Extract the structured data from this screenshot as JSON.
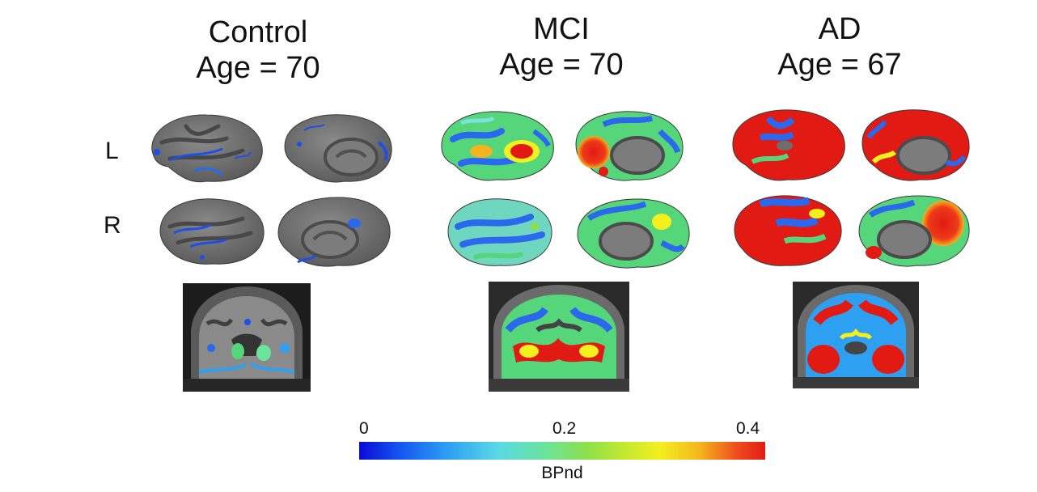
{
  "columns": [
    {
      "group": "Control",
      "age": "Age = 70"
    },
    {
      "group": "MCI",
      "age": "Age = 70"
    },
    {
      "group": "AD",
      "age": "Age = 67"
    }
  ],
  "row_labels": {
    "left": "L",
    "right": "R"
  },
  "colorbar": {
    "label": "BPnd",
    "ticks": [
      "0",
      "0.2",
      "0.4"
    ],
    "min": 0,
    "max": 0.4,
    "colormap": "jet"
  },
  "colors": {
    "cortex_gray": "#6e6e6e",
    "sulcus_gray": "#4e4e4e",
    "low_blue": "#1f4fe6",
    "mid_green": "#55d67a",
    "high_red": "#e21a14"
  }
}
